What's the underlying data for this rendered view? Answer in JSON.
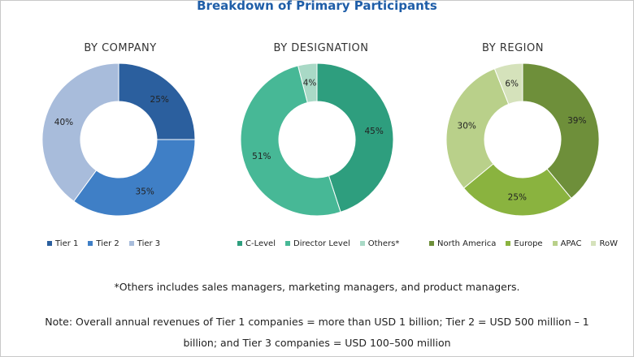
{
  "header": {
    "title": "Breakdown of Primary Participants"
  },
  "chart_data": [
    {
      "type": "pie",
      "title": "BY COMPANY",
      "categories": [
        "Tier 1",
        "Tier 2",
        "Tier 3"
      ],
      "values": [
        25,
        35,
        40
      ],
      "value_labels": [
        "25%",
        "35%",
        "40%"
      ],
      "colors": [
        "#2b5f9e",
        "#3f7fc6",
        "#a8bcdb"
      ]
    },
    {
      "type": "pie",
      "title": "BY DESIGNATION",
      "categories": [
        "C-Level",
        "Director Level",
        "Others*"
      ],
      "values": [
        45,
        51,
        4
      ],
      "value_labels": [
        "45%",
        "51%",
        "4%"
      ],
      "colors": [
        "#2e9e7e",
        "#47b896",
        "#a9d9c6"
      ]
    },
    {
      "type": "pie",
      "title": "BY REGION",
      "categories": [
        "North America",
        "Europe",
        "APAC",
        "RoW"
      ],
      "values": [
        39,
        25,
        30,
        6
      ],
      "value_labels": [
        "39%",
        "25%",
        "30%",
        "6%"
      ],
      "colors": [
        "#6e8f3a",
        "#8ab33f",
        "#b9d08a",
        "#d5e2bb"
      ]
    }
  ],
  "footnote": "*Others includes sales managers, marketing managers, and product managers.",
  "note": {
    "line1": "Note: Overall annual revenues of Tier 1 companies = more than USD 1 billion; Tier 2 = USD 500 million – 1",
    "line2": "billion; and Tier 3 companies = USD 100–500 million"
  }
}
